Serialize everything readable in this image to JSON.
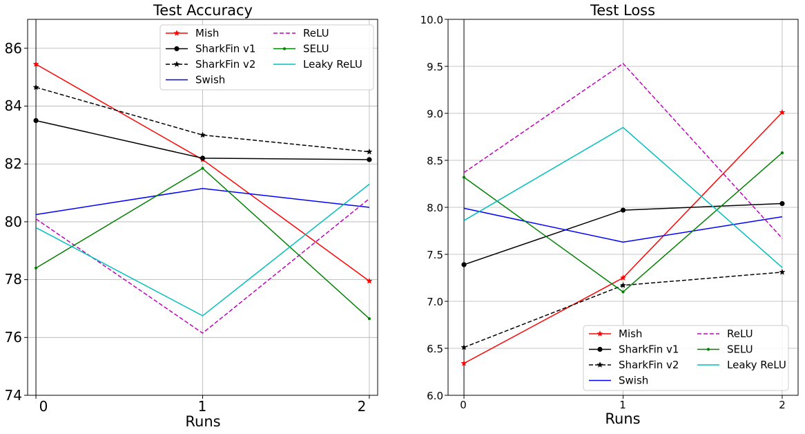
{
  "chart_data": [
    {
      "type": "line",
      "title": "Test Accuracy",
      "xlabel": "Runs",
      "ylabel": "",
      "x": [
        0,
        1,
        2
      ],
      "xticks": [
        "0",
        "1",
        "2"
      ],
      "xlim": [
        -0.05,
        2.05
      ],
      "ylim": [
        74,
        87
      ],
      "yticks": [
        "74",
        "76",
        "78",
        "80",
        "82",
        "84",
        "86"
      ],
      "grid": true,
      "legend_position": "upper-right",
      "legend_columns": 2,
      "series": [
        {
          "name": "Mish",
          "values": [
            85.45,
            82.15,
            77.95
          ],
          "color": "#ff0000",
          "dash": "solid",
          "marker": "star"
        },
        {
          "name": "SharkFin v1",
          "values": [
            83.5,
            82.2,
            82.15
          ],
          "color": "#000000",
          "dash": "solid",
          "marker": "circle"
        },
        {
          "name": "SharkFin v2",
          "values": [
            84.65,
            83.0,
            82.42
          ],
          "color": "#000000",
          "dash": "dashed",
          "marker": "star"
        },
        {
          "name": "Swish",
          "values": [
            80.25,
            81.15,
            80.5
          ],
          "color": "#0000ff",
          "dash": "solid",
          "marker": "none"
        },
        {
          "name": "ReLU",
          "values": [
            80.1,
            76.15,
            80.8
          ],
          "color": "#bf00bf",
          "dash": "dashed",
          "marker": "none"
        },
        {
          "name": "SELU",
          "values": [
            78.4,
            81.85,
            76.65
          ],
          "color": "#008000",
          "dash": "solid",
          "marker": "dot"
        },
        {
          "name": "Leaky ReLU",
          "values": [
            79.8,
            76.75,
            81.3
          ],
          "color": "#00bfbf",
          "dash": "solid",
          "marker": "none"
        }
      ]
    },
    {
      "type": "line",
      "title": "Test Loss",
      "xlabel": "Runs",
      "ylabel": "",
      "x": [
        0,
        1,
        2
      ],
      "xticks": [
        "0",
        "1",
        "2"
      ],
      "xlim": [
        -0.1,
        2.1
      ],
      "ylim": [
        6.0,
        10.0
      ],
      "yticks": [
        "6.0",
        "6.5",
        "7.0",
        "7.5",
        "8.0",
        "8.5",
        "9.0",
        "9.5",
        "10.0"
      ],
      "grid": true,
      "legend_position": "lower-right",
      "legend_columns": 2,
      "series": [
        {
          "name": "Mish",
          "values": [
            6.34,
            7.25,
            9.01
          ],
          "color": "#ff0000",
          "dash": "solid",
          "marker": "star"
        },
        {
          "name": "SharkFin v1",
          "values": [
            7.39,
            7.97,
            8.04
          ],
          "color": "#000000",
          "dash": "solid",
          "marker": "circle"
        },
        {
          "name": "SharkFin v2",
          "values": [
            6.51,
            7.17,
            7.31
          ],
          "color": "#000000",
          "dash": "dashed",
          "marker": "star"
        },
        {
          "name": "Swish",
          "values": [
            7.99,
            7.63,
            7.9
          ],
          "color": "#0000ff",
          "dash": "solid",
          "marker": "none"
        },
        {
          "name": "ReLU",
          "values": [
            8.37,
            9.53,
            7.67
          ],
          "color": "#bf00bf",
          "dash": "dashed",
          "marker": "none"
        },
        {
          "name": "SELU",
          "values": [
            8.32,
            7.1,
            8.58
          ],
          "color": "#008000",
          "dash": "solid",
          "marker": "dot"
        },
        {
          "name": "Leaky ReLU",
          "values": [
            7.86,
            8.85,
            7.36
          ],
          "color": "#00bfbf",
          "dash": "solid",
          "marker": "none"
        }
      ]
    }
  ]
}
